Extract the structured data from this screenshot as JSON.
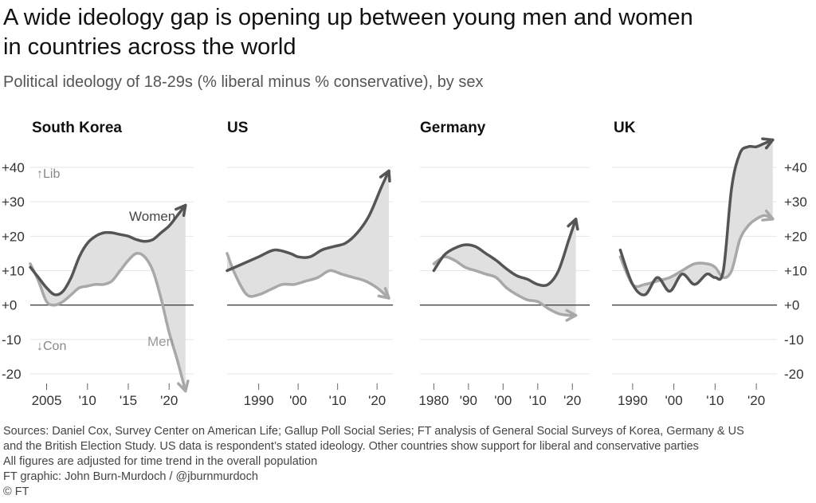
{
  "title_line1": "A wide ideology gap is opening up between young men and women",
  "title_line2": "in countries across the world",
  "subtitle": "Political ideology of 18-29s (% liberal minus % conservative), by sex",
  "footnotes": [
    "Sources: Daniel Cox, Survey Center on American Life; Gallup Poll Social Series; FT analysis of General Social Surveys of Korea, Germany & US",
    "and the British Election Study. US data is respondent’s stated ideology. Other countries show support for liberal and conservative parties",
    "All figures are adjusted for time trend in the overall population",
    "FT graphic: John Burn-Murdoch / @jburnmurdoch",
    "© FT"
  ],
  "colors": {
    "women": "#555555",
    "men": "#a8a8a8",
    "gap_fill": "#e0e0e0",
    "grid": "#e6e6e6",
    "zero_line": "#444444",
    "tick_text": "#333333"
  },
  "chart_data": [
    {
      "type": "line",
      "title": "South Korea",
      "ylim": [
        -25,
        45
      ],
      "yticks": [
        40,
        30,
        20,
        10,
        0,
        -10,
        -20
      ],
      "ytick_labels": [
        "+40",
        "+30",
        "+20",
        "+10",
        "+0",
        "-10",
        "-20"
      ],
      "y_side": "left",
      "lib_label": "↑Lib",
      "con_label": "↓Con",
      "xlim": [
        2003,
        2023
      ],
      "xticks": [
        2005,
        2010,
        2015,
        2020
      ],
      "xtick_labels": [
        "2005",
        "'10",
        "'15",
        "'20"
      ],
      "grid": true,
      "series": [
        {
          "name": "Women",
          "x": [
            2003,
            2004,
            2005,
            2006,
            2007,
            2008,
            2009,
            2010,
            2011,
            2012,
            2013,
            2014,
            2015,
            2016,
            2017,
            2018,
            2019,
            2020,
            2021,
            2022
          ],
          "values": [
            11,
            8,
            5,
            3,
            4,
            8,
            14,
            18,
            20,
            21,
            21,
            20.5,
            20,
            19,
            18.5,
            19,
            21,
            23,
            26,
            29
          ]
        },
        {
          "name": "Men",
          "x": [
            2003,
            2004,
            2005,
            2006,
            2007,
            2008,
            2009,
            2010,
            2011,
            2012,
            2013,
            2014,
            2015,
            2016,
            2017,
            2018,
            2019,
            2020,
            2021,
            2022
          ],
          "values": [
            12,
            7,
            1,
            0,
            1,
            3,
            5,
            5.5,
            6,
            6,
            7,
            10,
            13,
            15,
            14,
            10,
            2,
            -8,
            -16,
            -25
          ]
        }
      ]
    },
    {
      "type": "line",
      "title": "US",
      "ylim": [
        -25,
        45
      ],
      "yticks": [
        40,
        30,
        20,
        10,
        0,
        -10,
        -20
      ],
      "ytick_labels": [],
      "y_side": "none",
      "xlim": [
        1982,
        2024
      ],
      "xticks": [
        1990,
        2000,
        2010,
        2020
      ],
      "xtick_labels": [
        "1990",
        "'00",
        "'10",
        "'20"
      ],
      "grid": true,
      "series": [
        {
          "name": "Women",
          "x": [
            1982,
            1986,
            1990,
            1994,
            1998,
            2000,
            2003,
            2006,
            2009,
            2012,
            2015,
            2018,
            2021,
            2023
          ],
          "values": [
            10,
            12,
            14,
            16,
            15,
            14,
            14,
            16,
            17,
            18,
            21,
            26,
            34,
            39
          ]
        },
        {
          "name": "Men",
          "x": [
            1982,
            1984,
            1987,
            1990,
            1993,
            1996,
            1999,
            2002,
            2005,
            2008,
            2011,
            2014,
            2017,
            2020,
            2023
          ],
          "values": [
            15,
            9,
            3,
            3,
            4.5,
            6,
            6,
            7,
            8,
            10,
            9,
            8,
            7,
            5,
            2
          ]
        }
      ]
    },
    {
      "type": "line",
      "title": "Germany",
      "ylim": [
        -25,
        45
      ],
      "yticks": [
        40,
        30,
        20,
        10,
        0,
        -10,
        -20
      ],
      "ytick_labels": [],
      "y_side": "none",
      "xlim": [
        1976,
        2025
      ],
      "xticks": [
        1980,
        1990,
        2000,
        2010,
        2020
      ],
      "xtick_labels": [
        "1980",
        "'90",
        "'00",
        "'10",
        "'20"
      ],
      "grid": true,
      "series": [
        {
          "name": "Women",
          "x": [
            1980,
            1983,
            1986,
            1989,
            1992,
            1995,
            1998,
            2001,
            2004,
            2007,
            2010,
            2013,
            2016,
            2019,
            2021
          ],
          "values": [
            10,
            14.5,
            16.5,
            17.5,
            17,
            15,
            13,
            10.5,
            8.5,
            7.5,
            6,
            6,
            10,
            19,
            25
          ]
        },
        {
          "name": "Men",
          "x": [
            1980,
            1983,
            1986,
            1989,
            1992,
            1995,
            1998,
            2001,
            2004,
            2007,
            2010,
            2013,
            2016,
            2019,
            2021
          ],
          "values": [
            12,
            14,
            13,
            11,
            10,
            9,
            8,
            5,
            3,
            1.5,
            1,
            -1,
            -2.5,
            -3,
            -3
          ]
        }
      ]
    },
    {
      "type": "line",
      "title": "UK",
      "ylim": [
        -25,
        45
      ],
      "yticks": [
        40,
        30,
        20,
        10,
        0,
        -10,
        -20
      ],
      "ytick_labels": [
        "+40",
        "+30",
        "+20",
        "+10",
        "+0",
        "-10",
        "-20"
      ],
      "y_side": "right",
      "xlim": [
        1985,
        2025
      ],
      "xticks": [
        1990,
        2000,
        2010,
        2020
      ],
      "xtick_labels": [
        "1990",
        "'00",
        "'10",
        "'20"
      ],
      "grid": true,
      "series": [
        {
          "name": "Women",
          "x": [
            1987,
            1990,
            1993,
            1996,
            1999,
            2002,
            2005,
            2008,
            2010,
            2012,
            2014,
            2016,
            2018,
            2020,
            2022,
            2024
          ],
          "values": [
            16,
            6,
            3,
            8,
            4,
            9,
            6,
            9,
            8,
            10,
            34,
            44,
            46,
            46,
            47,
            48
          ]
        },
        {
          "name": "Men",
          "x": [
            1987,
            1990,
            1993,
            1996,
            1999,
            2002,
            2005,
            2008,
            2010,
            2012,
            2014,
            2016,
            2018,
            2020,
            2022,
            2024
          ],
          "values": [
            14,
            6,
            6,
            7,
            8,
            10,
            12,
            12,
            11,
            8,
            10,
            19,
            23,
            25,
            26,
            25
          ]
        }
      ]
    }
  ]
}
